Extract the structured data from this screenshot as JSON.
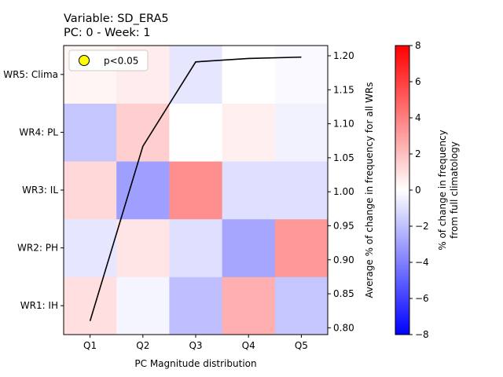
{
  "chart_data": {
    "type": "heatmap",
    "title": "Variable: SD_ERA5",
    "subtitle": "PC: 0 - Week: 1",
    "xlabel": "PC Magnitude distribution",
    "x_categories": [
      "Q1",
      "Q2",
      "Q3",
      "Q4",
      "Q5"
    ],
    "y_categories": [
      "WR1: IH",
      "WR2: PH",
      "WR3: IL",
      "WR4: PL",
      "WR5: Clima"
    ],
    "values": [
      [
        1.0,
        -0.3,
        -2.0,
        2.5,
        -1.8
      ],
      [
        -0.8,
        0.8,
        -1.0,
        -2.8,
        3.2
      ],
      [
        1.2,
        -3.0,
        3.5,
        -1.0,
        -1.0
      ],
      [
        -1.8,
        1.5,
        0.0,
        0.5,
        -0.4
      ],
      [
        0.3,
        0.6,
        -0.8,
        0.0,
        -0.2
      ]
    ],
    "colorbar": {
      "label_line1": "% of change in frequency",
      "label_line2": "from full climatology",
      "range": [
        -8,
        8
      ],
      "ticks": [
        "−8",
        "−6",
        "−4",
        "−2",
        "0",
        "2",
        "4",
        "6",
        "8"
      ],
      "colormap": "bwr"
    },
    "line_series": {
      "ylabel": "Average % of change in frequency for all WRs",
      "x": [
        "Q1",
        "Q2",
        "Q3",
        "Q4",
        "Q5"
      ],
      "values": [
        0.81,
        1.067,
        1.191,
        1.196,
        1.198
      ],
      "ylim": [
        0.79,
        1.215
      ],
      "ticks": [
        "0.80",
        "0.85",
        "0.90",
        "0.95",
        "1.00",
        "1.05",
        "1.10",
        "1.15",
        "1.20"
      ],
      "color": "#000000"
    },
    "legend": {
      "label": "p<0.05",
      "marker_color": "#ffff00",
      "placement": "upper-left"
    }
  }
}
